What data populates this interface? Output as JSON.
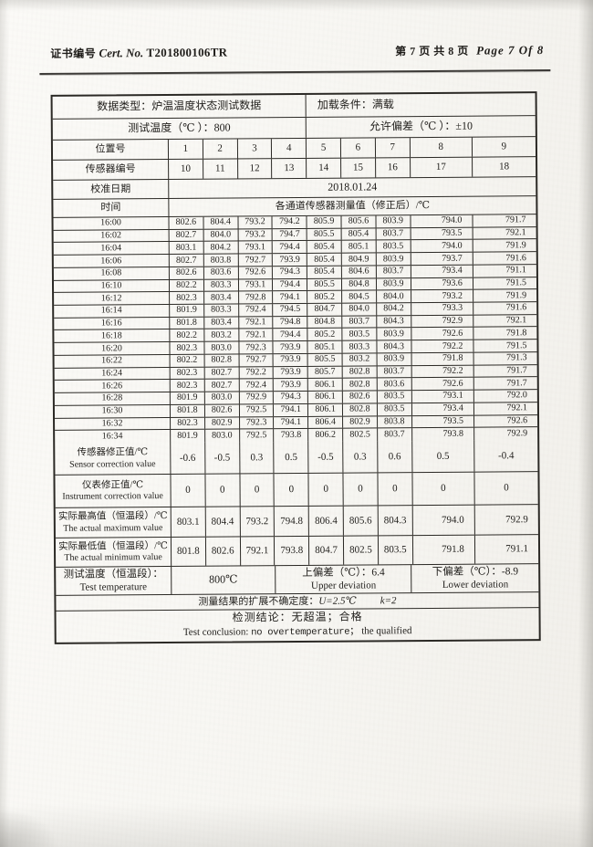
{
  "header": {
    "cert_prefix": "证书编号",
    "cert_label": "Cert. No.",
    "cert_number": "T201800106TR",
    "page_cn": "第 7 页 共 8 页",
    "page_en": "Page 7 Of 8"
  },
  "table": {
    "data_type": "数据类型：炉温温度状态测试数据",
    "load_condition": "加载条件：满载",
    "test_temp_header": "测试温度（℃ ）：800",
    "allowed_deviation": "允许偏差（℃ ）：±10",
    "position_row": {
      "label": "位置号",
      "values": [
        "1",
        "2",
        "3",
        "4",
        "5",
        "6",
        "7",
        "8",
        "9"
      ]
    },
    "sensor_row": {
      "label": "传感器编号",
      "values": [
        "10",
        "11",
        "12",
        "13",
        "14",
        "15",
        "16",
        "17",
        "18"
      ]
    },
    "calibration_date": {
      "label": "校准日期",
      "value": "2018.01.24"
    },
    "time_header": {
      "label": "时间",
      "value": "各通道传感器测量值（修正后）/℃"
    },
    "readings": [
      {
        "time": "16:00",
        "values": [
          "802.6",
          "804.4",
          "793.2",
          "794.2",
          "805.9",
          "805.6",
          "803.9",
          "794.0",
          "791.7"
        ]
      },
      {
        "time": "16:02",
        "values": [
          "802.7",
          "804.0",
          "793.2",
          "794.7",
          "805.5",
          "805.4",
          "803.7",
          "793.5",
          "792.1"
        ]
      },
      {
        "time": "16:04",
        "values": [
          "803.1",
          "804.2",
          "793.1",
          "794.4",
          "805.4",
          "805.1",
          "803.5",
          "794.0",
          "791.9"
        ]
      },
      {
        "time": "16:06",
        "values": [
          "802.7",
          "803.8",
          "792.7",
          "793.9",
          "805.4",
          "804.9",
          "803.9",
          "793.7",
          "791.6"
        ]
      },
      {
        "time": "16:08",
        "values": [
          "802.6",
          "803.6",
          "792.6",
          "794.3",
          "805.4",
          "804.6",
          "803.7",
          "793.4",
          "791.1"
        ]
      },
      {
        "time": "16:10",
        "values": [
          "802.2",
          "803.3",
          "793.1",
          "794.4",
          "805.5",
          "804.8",
          "803.9",
          "793.6",
          "791.5"
        ]
      },
      {
        "time": "16:12",
        "values": [
          "802.3",
          "803.4",
          "792.8",
          "794.1",
          "805.2",
          "804.5",
          "804.0",
          "793.2",
          "791.9"
        ]
      },
      {
        "time": "16:14",
        "values": [
          "801.9",
          "803.3",
          "792.4",
          "794.5",
          "804.7",
          "804.0",
          "804.2",
          "793.3",
          "791.6"
        ]
      },
      {
        "time": "16:16",
        "values": [
          "801.8",
          "803.4",
          "792.1",
          "794.8",
          "804.8",
          "803.7",
          "804.3",
          "792.9",
          "792.1"
        ]
      },
      {
        "time": "16:18",
        "values": [
          "802.2",
          "803.2",
          "792.1",
          "794.4",
          "805.2",
          "803.5",
          "803.9",
          "792.6",
          "791.8"
        ]
      },
      {
        "time": "16:20",
        "values": [
          "802.3",
          "803.0",
          "792.3",
          "793.9",
          "805.1",
          "803.3",
          "804.3",
          "792.2",
          "791.5"
        ]
      },
      {
        "time": "16:22",
        "values": [
          "802.2",
          "802.8",
          "792.7",
          "793.9",
          "805.5",
          "803.2",
          "803.9",
          "791.8",
          "791.3"
        ]
      },
      {
        "time": "16:24",
        "values": [
          "802.3",
          "802.7",
          "792.2",
          "793.9",
          "805.7",
          "802.8",
          "803.7",
          "792.2",
          "791.7"
        ]
      },
      {
        "time": "16:26",
        "values": [
          "802.3",
          "802.7",
          "792.4",
          "793.9",
          "806.1",
          "802.8",
          "803.6",
          "792.6",
          "791.7"
        ]
      },
      {
        "time": "16:28",
        "values": [
          "801.9",
          "803.0",
          "792.9",
          "794.3",
          "806.1",
          "802.6",
          "803.5",
          "793.1",
          "792.0"
        ]
      },
      {
        "time": "16:30",
        "values": [
          "801.8",
          "802.6",
          "792.5",
          "794.1",
          "806.1",
          "802.8",
          "803.5",
          "793.4",
          "792.1"
        ]
      },
      {
        "time": "16:32",
        "values": [
          "802.3",
          "802.9",
          "792.3",
          "794.1",
          "806.4",
          "802.9",
          "803.8",
          "793.5",
          "792.6"
        ]
      },
      {
        "time": "16:34",
        "values": [
          "801.9",
          "803.0",
          "792.5",
          "793.8",
          "806.2",
          "802.5",
          "803.7",
          "793.8",
          "792.9"
        ]
      }
    ],
    "sensor_correction": {
      "label_cn": "传感器修正值/℃",
      "label_en": "Sensor correction value",
      "values": [
        "-0.6",
        "-0.5",
        "0.3",
        "0.5",
        "-0.5",
        "0.3",
        "0.6",
        "0.5",
        "-0.4"
      ]
    },
    "instrument_correction": {
      "label_cn": "仪表修正值/℃",
      "label_en": "Instrument correction value",
      "values": [
        "0",
        "0",
        "0",
        "0",
        "0",
        "0",
        "0",
        "0",
        "0"
      ]
    },
    "actual_max": {
      "label_cn": "实际最高值（恒温段）/℃",
      "label_en": "The actual maximum value",
      "values": [
        "803.1",
        "804.4",
        "793.2",
        "794.8",
        "806.4",
        "805.6",
        "804.3",
        "794.0",
        "792.9"
      ]
    },
    "actual_min": {
      "label_cn": "实际最低值（恒温段）/℃",
      "label_en": "The actual minimum value",
      "values": [
        "801.8",
        "802.6",
        "792.1",
        "793.8",
        "804.7",
        "802.5",
        "803.5",
        "791.8",
        "791.1"
      ]
    },
    "test_temperature": {
      "label_cn": "测试温度（恒温段）：",
      "label_en": "Test temperature",
      "value": "800℃",
      "upper_cn": "上偏差（℃）：6.4",
      "upper_en": "Upper deviation",
      "lower_cn": "下偏差（℃）：-8.9",
      "lower_en": "Lower deviation"
    },
    "uncertainty_label": "测量结果的扩展不确定度：",
    "uncertainty_u": "U=2.5℃",
    "uncertainty_k": "k=2",
    "conclusion_cn": "检测结论：无超温；合格",
    "conclusion_en_prefix": "Test conclusion: ",
    "conclusion_en_mono": "no overtemperature；",
    "conclusion_en_suffix": " the qualified"
  }
}
